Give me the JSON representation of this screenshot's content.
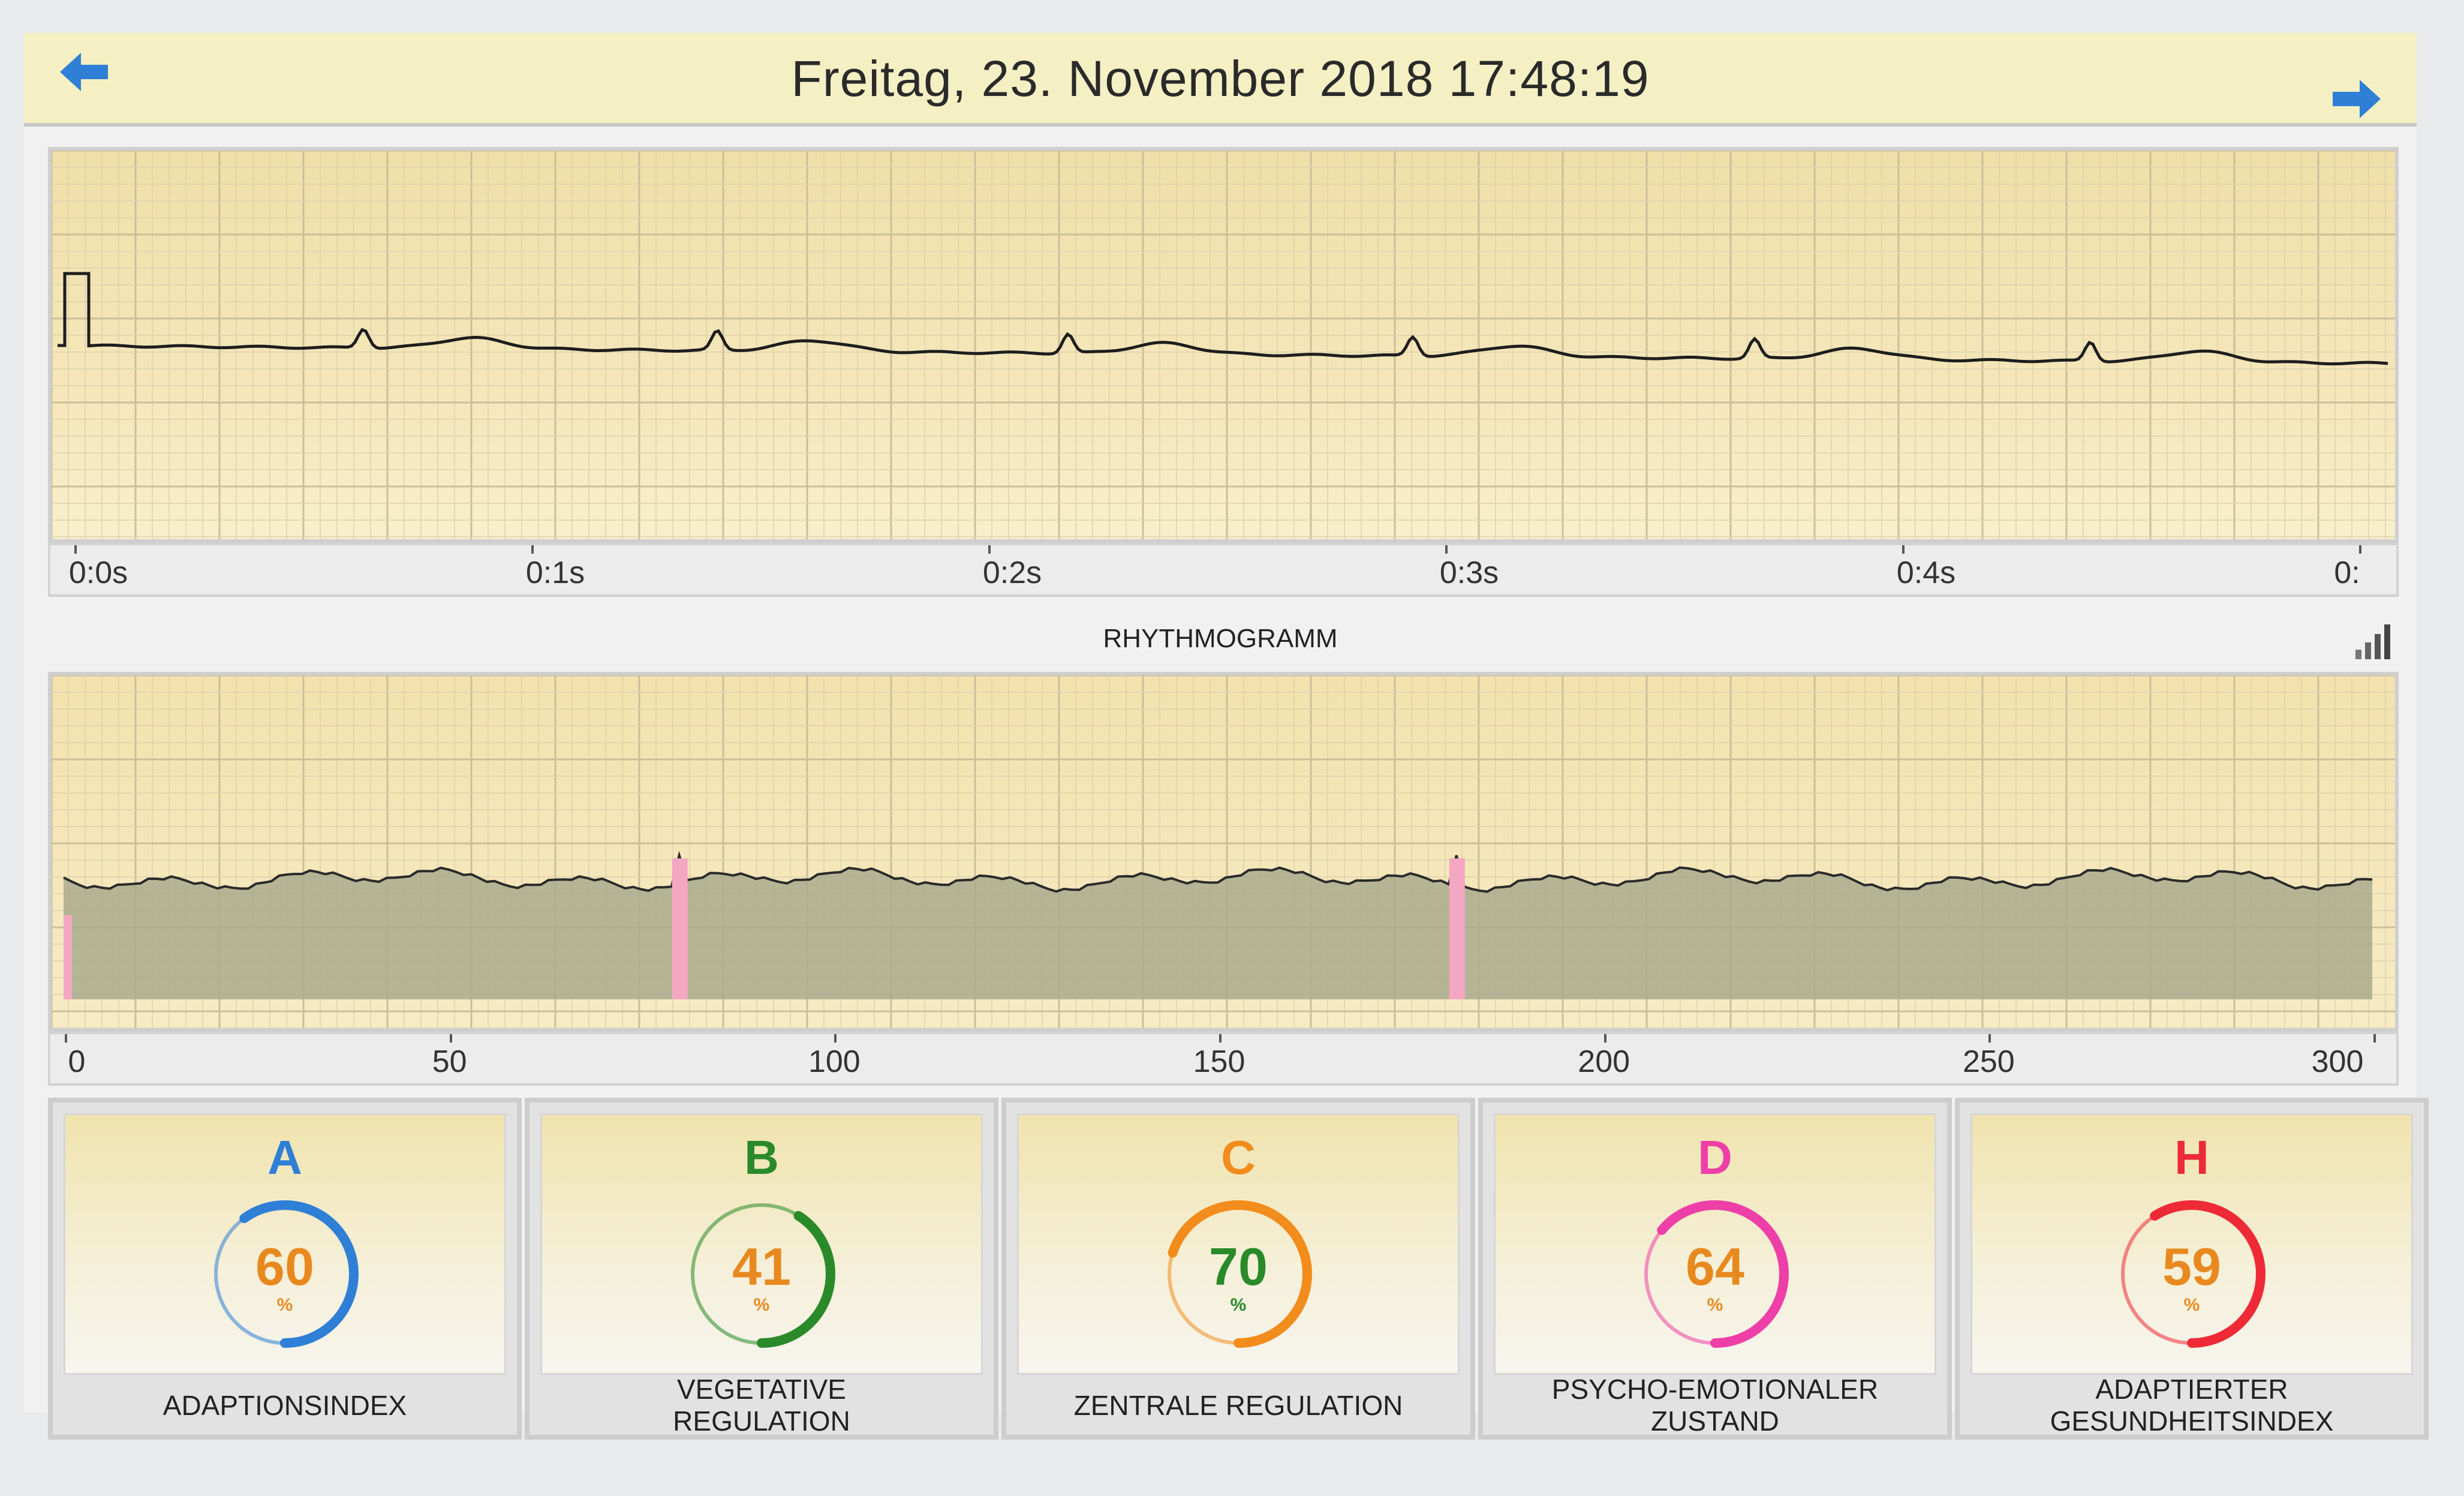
{
  "header": {
    "title": "Freitag, 23. November 2018 17:48:19",
    "prev_icon": "arrow-left-icon",
    "next_icon": "arrow-right-icon"
  },
  "ecg": {
    "x_ticks": [
      "0:0s",
      "0:1s",
      "0:2s",
      "0:3s",
      "0:4s",
      "0:"
    ]
  },
  "rhythmogram": {
    "label": "RHYTHMOGRAMM",
    "icon": "signal-bars-icon",
    "x_ticks": [
      "0",
      "50",
      "100",
      "150",
      "200",
      "250",
      "300"
    ]
  },
  "indices": [
    {
      "letter": "A",
      "value": "60",
      "unit": "%",
      "caption": "ADAPTIONSINDEX",
      "color": "#2f7fd6",
      "value_color": "#e8891f",
      "fill": 0.6
    },
    {
      "letter": "B",
      "value": "41",
      "unit": "%",
      "caption": "VEGETATIVE\nREGULATION",
      "color": "#2a8a2a",
      "value_color": "#e8891f",
      "fill": 0.41
    },
    {
      "letter": "C",
      "value": "70",
      "unit": "%",
      "caption": "ZENTRALE REGULATION",
      "color": "#f28c1c",
      "value_color": "#2a8a2a",
      "fill": 0.7
    },
    {
      "letter": "D",
      "value": "64",
      "unit": "%",
      "caption": "PSYCHO-EMOTIONALER\nZUSTAND",
      "color": "#ee3fa8",
      "value_color": "#e8891f",
      "fill": 0.64
    },
    {
      "letter": "H",
      "value": "59",
      "unit": "%",
      "caption": "ADAPTIERTER\nGESUNDHEITSINDEX",
      "color": "#ee2a36",
      "value_color": "#e8891f",
      "fill": 0.59
    }
  ]
}
